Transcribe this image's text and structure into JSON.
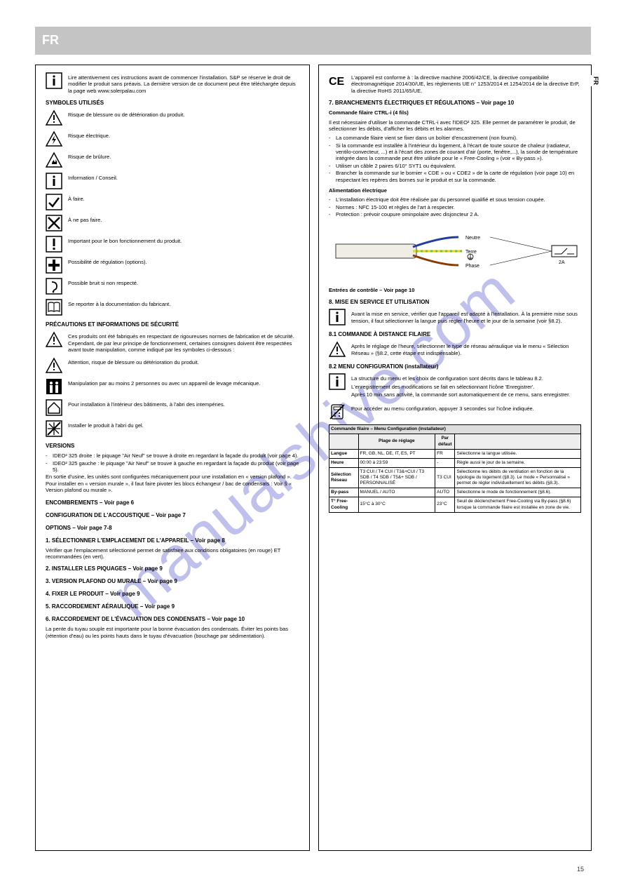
{
  "watermark": "manualshive.com",
  "header_title": "FR",
  "page_number": "15",
  "lang_tab": "FR",
  "left": {
    "intro_icon": "info",
    "intro": "Lire attentivement ces instructions avant de commencer l'installation. S&P se réserve le droit de modifier le produit sans préavis. La dernière version de ce document peut être téléchargée depuis la page web www.solerpalau.com",
    "symbols_title": "SYMBOLES UTILISÉS",
    "symbols": [
      {
        "icon": "warn",
        "label": "Risque de blessure ou de détérioration du produit."
      },
      {
        "icon": "elec",
        "label": "Risque électrique."
      },
      {
        "icon": "burn",
        "label": "Risque de brûlure."
      },
      {
        "icon": "info",
        "label": "Information / Conseil."
      },
      {
        "icon": "ok",
        "label": "À faire."
      },
      {
        "icon": "no",
        "label": "À ne pas faire."
      },
      {
        "icon": "excl",
        "label": "Important pour le bon fonctionnement du produit."
      },
      {
        "icon": "plus",
        "label": "Possibilité de régulation (options)."
      },
      {
        "icon": "ear",
        "label": "Possible bruit si non respecté."
      },
      {
        "icon": "book",
        "label": "Se reporter à la documentation du fabricant."
      }
    ],
    "caution_title": "PRÉCAUTIONS ET INFORMATIONS DE SÉCURITÉ",
    "caution_text": "Ces produits ont été fabriqués en respectant de rigoureuses normes de fabrication et de sécurité. Cependant, de par leur principe de fonctionnement, certaines consignes doivent être respectées avant toute manipulation, comme indiqué par les symboles ci-dessous :",
    "safety": [
      {
        "icon": "warn",
        "text": "Attention, risque de blessure ou détérioration du produit."
      },
      {
        "icon": "people",
        "text": "Manipulation par au moins 2 personnes ou avec un appareil de levage mécanique."
      },
      {
        "icon": "house",
        "text": "Pour installation à l'intérieur des bâtiments, à l'abri des intempéries."
      },
      {
        "icon": "nofreeze",
        "text": "Installer le produit à l'abri du gel."
      }
    ],
    "version_title": "VERSIONS",
    "version_rows": [
      {
        "dash": "-",
        "text": "IDEO² 325 droite : le piquage \"Air Neuf\" se trouve à droite en regardant la façade du produit (voir page 4)."
      },
      {
        "dash": "-",
        "text": "IDEO² 325 gauche : le piquage \"Air Neuf\" se trouve à gauche en regardant la façade du produit (voir page 5)."
      }
    ],
    "version_note": "En sortie d'usine, les unités sont configurées mécaniquement pour une installation en « version plafond ». Pour installer en « version murale », il faut faire pivoter les blocs échangeur / bac de condensats : Voir § « Version plafond ou murale ».",
    "g_encomb": "ENCOMBREMENTS – Voir page 6",
    "g_accou": "CONFIGURATION DE L'ACCOUSTIQUE – Voir page 7",
    "g_options": "OPTIONS – Voir page 7-8",
    "g1_title": "1. SÉLECTIONNER L'EMPLACEMENT DE L'APPAREIL – Voir page 8",
    "g1_note": "Vérifier que l'emplacement sélectionné permet de satisfaire aux conditions obligatoires (en rouge) ET recommandées (en vert).",
    "g2_title": "2. INSTALLER LES PIQUAGES – Voir page 9",
    "g3_title": "3. VERSION PLAFOND OU MURALE – Voir page 9",
    "g4_title": "4. FIXER LE PRODUIT – Voir page 9",
    "g5_title": "5. RACCORDEMENT AÉRAULIQUE – Voir page 9",
    "g6_title": "6. RACCORDEMENT DE L'ÉVACUATION DES CONDENSATS – Voir page 10",
    "g6_note": "La pente du tuyau souple est importante pour la bonne évacuation des condensats. Éviter les points bas (rétention d'eau) ou les points hauts dans le tuyau d'évacuation (bouchage par sédimentation)."
  },
  "right": {
    "ce_text": "L'appareil est conforme à : la directive machine 2006/42/CE, la directive compatibilité électromagnétique 2014/30/UE, les règlements UE n° 1253/2014 et 1254/2014 de la directive ErP, la directive RoHS 2011/65/UE.",
    "g7_title": "7. BRANCHEMENTS ÉLECTRIQUES ET RÉGULATIONS – Voir page 10",
    "com_title": "Commande filaire CTRL-i (4 fils)",
    "com_note": "Il est nécessaire d'utiliser la commande CTRL-i avec l'IDEO² 325. Elle permet de paramétrer le produit, de sélectionner les débits, d'afficher les débits et les alarmes.",
    "com_rows": [
      {
        "dash": "-",
        "text": "La commande filaire vient se fixer dans un boîtier d'encastrement (non fourni)."
      },
      {
        "dash": "-",
        "text": "Si la commande est installée à l'intérieur du logement, à l'écart de toute source de chaleur (radiateur, ventilo-convecteur, ...) et à l'écart des zones de courant d'air (porte, fenêtre,...), la sonde de température intégrée dans la commande peut être utilisée pour le « Free-Cooling » (voir « By-pass »)."
      },
      {
        "dash": "-",
        "text": "Utiliser un câble 2 paires 6/10° SYT1 ou équivalent."
      },
      {
        "dash": "-",
        "text": "Brancher la commande sur le bornier « CDE » ou « CDE2 » de la carte de régulation (voir page 10) en respectant les repères des bornes sur le produit et sur la commande."
      }
    ],
    "alim_title": "Alimentation électrique",
    "alim_rows": [
      {
        "dash": "-",
        "text": "L'installation électrique doit être réalisée par du personnel qualifié et sous tension coupée."
      },
      {
        "dash": "-",
        "text": "Normes : NFC 15-100 et règles de l'art à respecter."
      },
      {
        "dash": "-",
        "text": "Protection : prévoir coupure ominpolaire avec disjoncteur 2 A."
      }
    ],
    "cable": {
      "colors": {
        "neutral": "#1e3fa0",
        "earth_a": "#6bbf3a",
        "earth_b": "#f2d400",
        "live": "#8b3a00",
        "sheath": "#f0ede4",
        "outline": "#3a3a3a"
      },
      "labels": {
        "neutral": "Neutre",
        "earth": "Terre",
        "live": "Phase"
      },
      "switch_label": "2A"
    },
    "inputs_title": "Entrées de contrôle – Voir page 10",
    "start_title": "8. MISE EN SERVICE ET UTILISATION",
    "info1_icon": "info",
    "info1": "Avant la mise en service, vérifier que l'appareil est adapté à l'installation. À la première mise sous tension, il faut sélectionner la langue puis régler l'heure et le jour de la semaine (voir §8.2).",
    "s81_title": "8.1 COMMANDE À DISTANCE FILAIRE",
    "s81_warn_icon": "warn",
    "s81_warn": "Après le réglage de l'heure, sélectionner le type de réseau aéraulique via le menu « Sélection Réseau » (§8.2, cette étape est indispensable).",
    "s82_title": "8.2 MENU CONFIGURATION (installateur)",
    "s82_info_icon": "info",
    "s82_info_rows": [
      "La structure du menu et les choix de configuration sont décrits dans le tableau 8.2.",
      "L'enregistrement des modifications se fait en sélectionnant l'icône 'Enregistrer'.",
      "Après 10 min sans activité, la commande sort automatiquement de ce menu, sans enregistrer."
    ],
    "s82_noremote_icon": "noremote",
    "s82_noremote": "Pour accéder au menu configuration, appuyer 3 secondes sur l'icône indiquée.",
    "table82": {
      "header": "Commande filaire – Menu Configuration (installateur)",
      "cols": [
        "",
        "Plage de réglage",
        "Par défaut",
        ""
      ],
      "rows": [
        [
          "Langue",
          "FR, GB, NL, DE, IT, ES, PT",
          "FR",
          "Sélectionne la langue utilisée."
        ],
        [
          "Heure",
          "00:00 à 23:59",
          "-",
          "Règle aussi le jour de la semaine."
        ],
        [
          "Sélection Réseau",
          "T3 CUI / T4 CUI / T3&+CUI / T3 SDB / T4 SDB / T5&+ SDB / PERSONNALISÉ",
          "T3 CUI",
          "Sélectionne les débits de ventilation en fonction de la typologie du logement (§8.3). Le mode « Personnalisé » permet de régler individuellement les débits (§8.3)."
        ],
        [
          "By-pass",
          "MANUEL / AUTO",
          "AUTO",
          "Sélectionne le mode de fonctionnement (§8.6)."
        ],
        [
          "T° Free-Cooling",
          "15°C à 30°C",
          "23°C",
          "Seuil de déclenchement Free-Cooling via By-pass (§8.6) lorsque la commande filaire est installée en zone de vie."
        ]
      ]
    }
  }
}
